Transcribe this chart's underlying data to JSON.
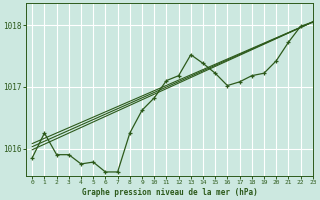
{
  "title": "Graphe pression niveau de la mer (hPa)",
  "bg_color": "#cce8e0",
  "grid_color": "#ffffff",
  "line_color": "#2d5a1b",
  "xlim": [
    -0.5,
    23
  ],
  "ylim": [
    1015.55,
    1018.35
  ],
  "yticks": [
    1016,
    1017,
    1018
  ],
  "xticks": [
    0,
    1,
    2,
    3,
    4,
    5,
    6,
    7,
    8,
    9,
    10,
    11,
    12,
    13,
    14,
    15,
    16,
    17,
    18,
    19,
    20,
    21,
    22,
    23
  ],
  "data_x": [
    0,
    1,
    2,
    3,
    4,
    5,
    6,
    7,
    8,
    9,
    10,
    11,
    12,
    13,
    14,
    15,
    16,
    17,
    18,
    19,
    20,
    21,
    22,
    23
  ],
  "data_y": [
    1015.85,
    1016.25,
    1015.9,
    1015.9,
    1015.75,
    1015.78,
    1015.62,
    1015.62,
    1016.25,
    1016.62,
    1016.82,
    1017.1,
    1017.18,
    1017.52,
    1017.38,
    1017.22,
    1017.02,
    1017.08,
    1017.18,
    1017.22,
    1017.42,
    1017.72,
    1017.98,
    1018.05
  ],
  "trend1_x": [
    0,
    23
  ],
  "trend1_y": [
    1015.98,
    1018.05
  ],
  "trend2_x": [
    0,
    23
  ],
  "trend2_y": [
    1016.03,
    1018.05
  ],
  "trend3_x": [
    0,
    23
  ],
  "trend3_y": [
    1016.08,
    1018.05
  ]
}
